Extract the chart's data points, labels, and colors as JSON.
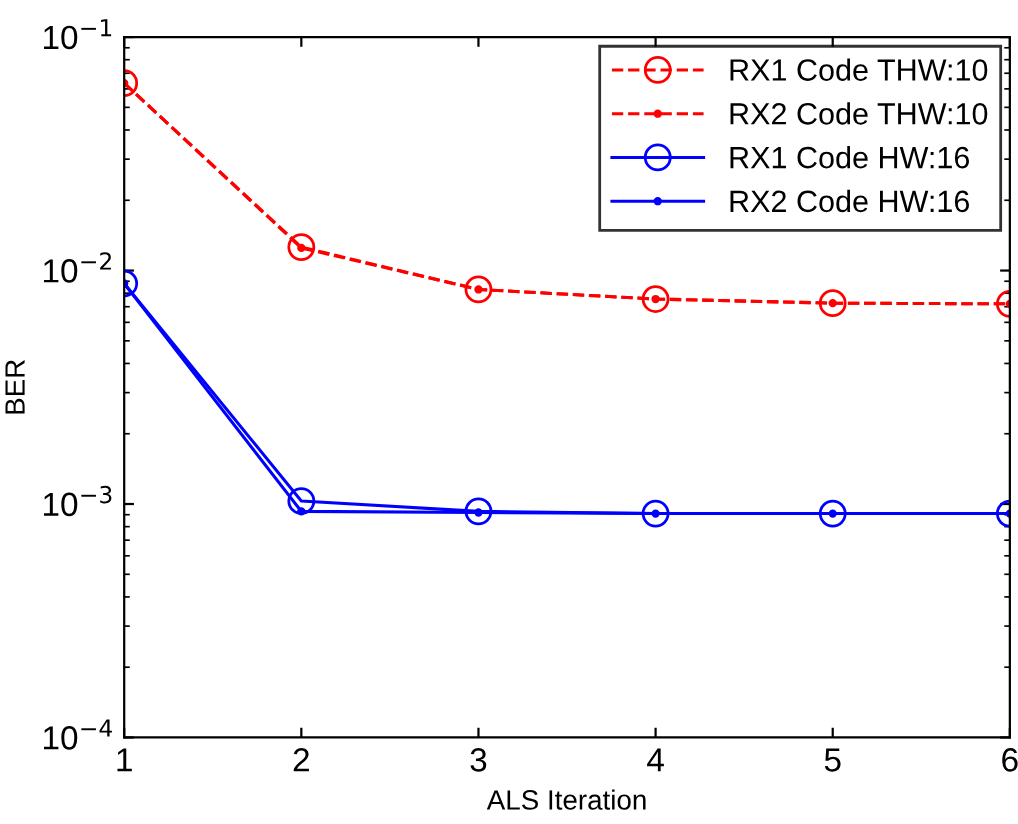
{
  "chart_data": {
    "type": "line",
    "xlabel": "ALS Iteration",
    "ylabel": "BER",
    "x": [
      1,
      2,
      3,
      4,
      5,
      6
    ],
    "series": [
      {
        "name": "RX1 Code THW:10",
        "color": "#ff0000",
        "line_style": "dashed",
        "marker": "circle",
        "values": [
          0.0635,
          0.0126,
          0.0083,
          0.00755,
          0.00725,
          0.0072
        ]
      },
      {
        "name": "RX2 Code THW:10",
        "color": "#ff0000",
        "line_style": "dashed",
        "marker": "point",
        "values": [
          0.0635,
          0.0125,
          0.0083,
          0.00755,
          0.00725,
          0.0072
        ]
      },
      {
        "name": "RX1 Code HW:16",
        "color": "#0000ff",
        "line_style": "solid",
        "marker": "circle",
        "values": [
          0.0088,
          0.00103,
          0.00093,
          0.00091,
          0.00091,
          0.00091
        ]
      },
      {
        "name": "RX2 Code HW:16",
        "color": "#0000ff",
        "line_style": "solid",
        "marker": "point",
        "values": [
          0.0088,
          0.00093,
          0.00092,
          0.00091,
          0.00091,
          0.00091
        ]
      }
    ],
    "log": "y",
    "xlim": [
      1,
      6
    ],
    "xticks": [
      1,
      2,
      3,
      4,
      5,
      6
    ],
    "ylim": [
      0.0001,
      0.1
    ],
    "yticks": [
      {
        "value": 0.0001,
        "label": "10$^{−4}$"
      },
      {
        "value": 0.001,
        "label": "10$^{−3}$"
      },
      {
        "value": 0.01,
        "label": "10$^{−2}$"
      },
      {
        "value": 0.1,
        "label": "10$^{−1}$"
      }
    ],
    "grid": false,
    "legend": "top right"
  }
}
